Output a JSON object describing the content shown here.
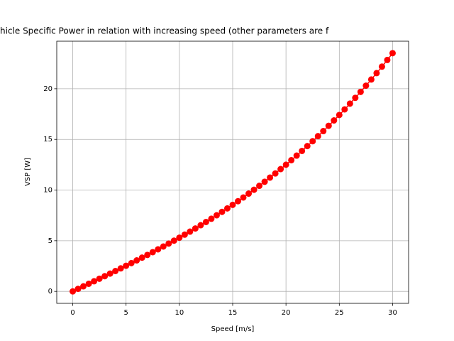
{
  "chart_data": {
    "type": "line",
    "title": "hicle Specific Power in relation with increasing speed (other parameters are f",
    "x_label": "Speed [m/s]",
    "y_label": "VSP [W]",
    "x": [
      0,
      0.5,
      1,
      1.5,
      2,
      2.5,
      3,
      3.5,
      4,
      4.5,
      5,
      5.5,
      6,
      6.5,
      7,
      7.5,
      8,
      8.5,
      9,
      9.5,
      10,
      10.5,
      11,
      11.5,
      12,
      12.5,
      13,
      13.5,
      14,
      14.5,
      15,
      15.5,
      16,
      16.5,
      17,
      17.5,
      18,
      18.5,
      19,
      19.5,
      20,
      20.5,
      21,
      21.5,
      22,
      22.5,
      23,
      23.5,
      24,
      24.5,
      25,
      25.5,
      26,
      26.5,
      27,
      27.5,
      28,
      28.5,
      29,
      29.5,
      30
    ],
    "series": [
      {
        "color": "#ff0000",
        "marker": "o",
        "values": [
          0,
          0.25,
          0.5,
          0.75,
          1.0,
          1.25,
          1.5,
          1.76,
          2.01,
          2.27,
          2.53,
          2.79,
          3.06,
          3.33,
          3.6,
          3.87,
          4.15,
          4.43,
          4.72,
          5.01,
          5.3,
          5.6,
          5.9,
          6.21,
          6.53,
          6.85,
          7.17,
          7.51,
          7.85,
          8.19,
          8.54,
          8.9,
          9.27,
          9.65,
          10.03,
          10.42,
          10.82,
          11.23,
          11.64,
          12.07,
          12.5,
          12.95,
          13.4,
          13.86,
          14.34,
          14.82,
          15.32,
          15.82,
          16.34,
          16.87,
          17.41,
          17.96,
          18.53,
          19.1,
          19.69,
          20.3,
          20.91,
          21.54,
          22.18,
          22.84,
          23.51
        ]
      }
    ],
    "xlim": [
      -1.5,
      31.5
    ],
    "ylim": [
      -1.18,
      24.69
    ],
    "xticks": [
      0,
      5,
      10,
      15,
      20,
      25,
      30
    ],
    "yticks": [
      0,
      5,
      10,
      15,
      20
    ],
    "grid": true
  }
}
